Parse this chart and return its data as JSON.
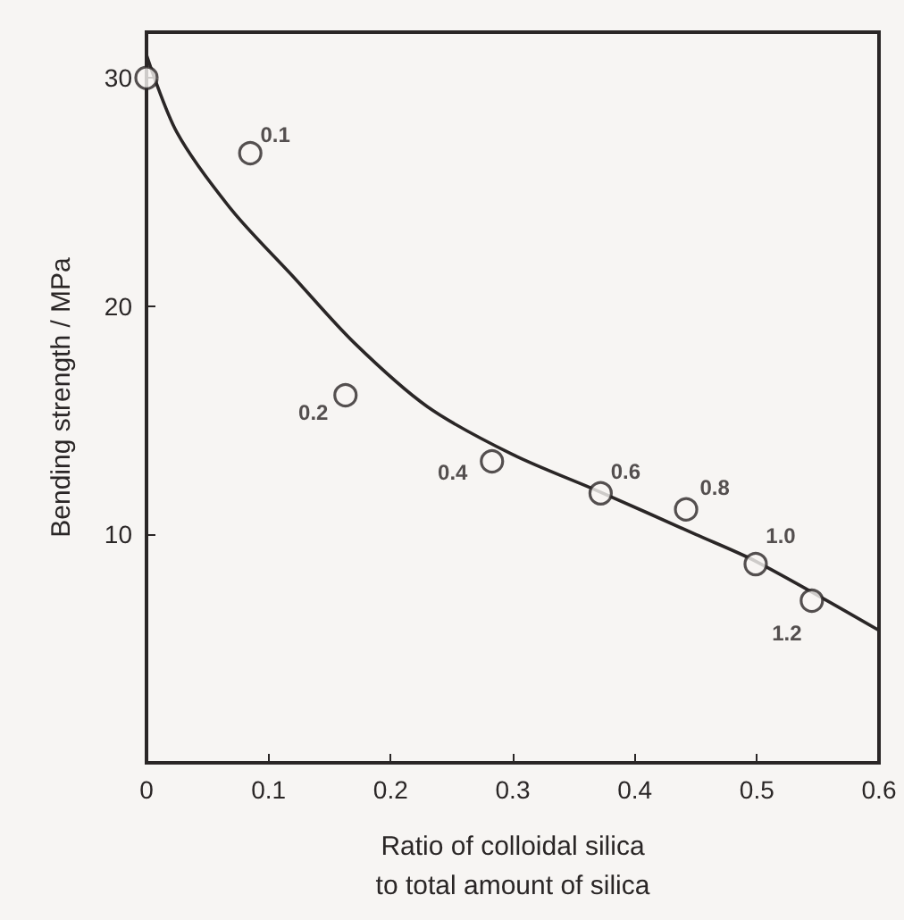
{
  "chart_data": {
    "type": "scatter",
    "xlabel": "Ratio of colloidal silica\nto total amount of silica",
    "ylabel": "Bending strength / MPa",
    "xlim": [
      0,
      0.6
    ],
    "ylim": [
      0,
      32
    ],
    "xticks": [
      0,
      0.1,
      0.2,
      0.3,
      0.4,
      0.5,
      0.6
    ],
    "yticks": [
      10,
      20,
      30
    ],
    "grid": false,
    "series": [
      {
        "marker": "circle",
        "color": "#2a2626",
        "x": [
          0,
          0.085,
          0.163,
          0.283,
          0.372,
          0.442,
          0.499,
          0.545
        ],
        "values": [
          30,
          26.7,
          16.1,
          13.2,
          11.8,
          11.1,
          8.7,
          7.1
        ]
      },
      {
        "type": "line",
        "marker": "none",
        "line_style": "solid",
        "color": "#2a2626",
        "x": [
          0,
          0.025,
          0.07,
          0.12,
          0.17,
          0.23,
          0.3,
          0.37,
          0.45,
          0.5,
          0.6
        ],
        "values": [
          31,
          27.6,
          24.2,
          21.3,
          18.4,
          15.6,
          13.5,
          11.9,
          10.0,
          8.8,
          5.8
        ]
      }
    ],
    "annotations": [
      {
        "text": "0.1",
        "x": 0.085,
        "y": 26.7
      },
      {
        "text": "0.2",
        "x": 0.163,
        "y": 16.1
      },
      {
        "text": "0.4",
        "x": 0.283,
        "y": 13.2
      },
      {
        "text": "0.6",
        "x": 0.372,
        "y": 11.8
      },
      {
        "text": "0.8",
        "x": 0.442,
        "y": 11.1
      },
      {
        "text": "1.0",
        "x": 0.499,
        "y": 8.7
      },
      {
        "text": "1.2",
        "x": 0.545,
        "y": 7.1
      }
    ]
  }
}
